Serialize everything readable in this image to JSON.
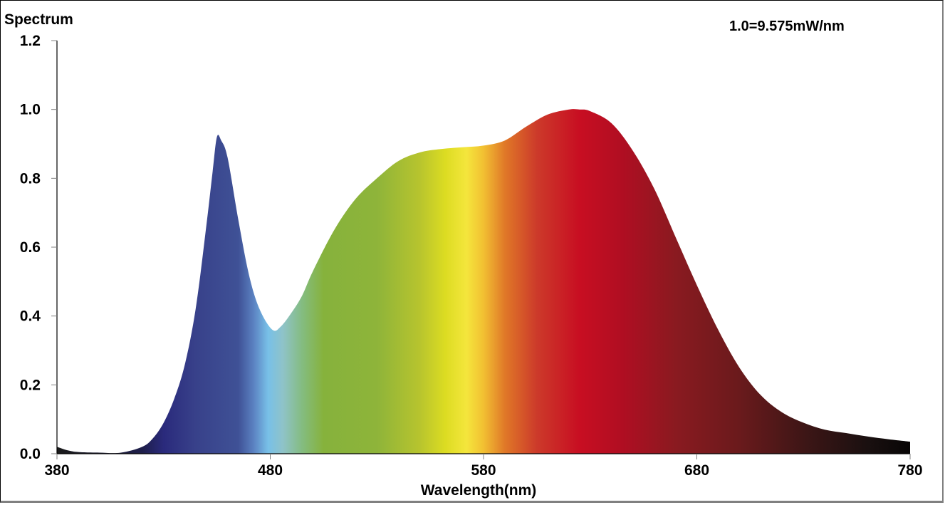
{
  "chart_data": {
    "type": "area",
    "title": "Spectrum",
    "annotation": "1.0=9.575mW/nm",
    "xlabel": "Wavelength(nm)",
    "ylabel": "Spectrum",
    "xlim": [
      380,
      780
    ],
    "ylim": [
      0,
      1.2
    ],
    "x_ticks": [
      "380",
      "480",
      "580",
      "680",
      "780"
    ],
    "y_ticks": [
      "0.0",
      "0.2",
      "0.4",
      "0.6",
      "0.8",
      "1.0",
      "1.2"
    ],
    "grid": false,
    "legend": null,
    "fill": "visible-spectrum color gradient",
    "x": [
      380,
      385,
      390,
      400,
      410,
      420,
      425,
      430,
      435,
      440,
      445,
      450,
      453,
      455,
      457,
      460,
      465,
      470,
      475,
      481,
      485,
      490,
      495,
      500,
      510,
      520,
      530,
      540,
      550,
      560,
      570,
      580,
      590,
      600,
      610,
      620,
      625,
      630,
      640,
      650,
      660,
      670,
      680,
      690,
      700,
      710,
      720,
      730,
      740,
      750,
      760,
      770,
      780
    ],
    "values": [
      0.02,
      0.01,
      0.005,
      0.003,
      0.003,
      0.02,
      0.045,
      0.09,
      0.16,
      0.26,
      0.42,
      0.66,
      0.82,
      0.92,
      0.91,
      0.86,
      0.68,
      0.52,
      0.42,
      0.36,
      0.37,
      0.41,
      0.46,
      0.53,
      0.65,
      0.74,
      0.8,
      0.85,
      0.875,
      0.885,
      0.89,
      0.895,
      0.91,
      0.95,
      0.985,
      1.0,
      1.0,
      0.995,
      0.96,
      0.88,
      0.77,
      0.63,
      0.49,
      0.36,
      0.25,
      0.17,
      0.12,
      0.09,
      0.07,
      0.06,
      0.05,
      0.042,
      0.035
    ]
  },
  "gradient_stops": [
    {
      "nm": 380,
      "color": "#1a1a1a"
    },
    {
      "nm": 420,
      "color": "#1e1e4a"
    },
    {
      "nm": 430,
      "color": "#2a2a7c"
    },
    {
      "nm": 445,
      "color": "#38418a"
    },
    {
      "nm": 465,
      "color": "#3f5196"
    },
    {
      "nm": 472,
      "color": "#5a80c0"
    },
    {
      "nm": 479,
      "color": "#78c0e8"
    },
    {
      "nm": 486,
      "color": "#8fc3c8"
    },
    {
      "nm": 495,
      "color": "#84bc80"
    },
    {
      "nm": 505,
      "color": "#86b23c"
    },
    {
      "nm": 530,
      "color": "#8eb43a"
    },
    {
      "nm": 550,
      "color": "#b7c42e"
    },
    {
      "nm": 562,
      "color": "#dcdc22"
    },
    {
      "nm": 572,
      "color": "#f4e63c"
    },
    {
      "nm": 580,
      "color": "#f2c032"
    },
    {
      "nm": 590,
      "color": "#e07828"
    },
    {
      "nm": 605,
      "color": "#cc3a2a"
    },
    {
      "nm": 625,
      "color": "#c80e22"
    },
    {
      "nm": 645,
      "color": "#b00e22"
    },
    {
      "nm": 670,
      "color": "#8a1a20"
    },
    {
      "nm": 700,
      "color": "#6a1a1c"
    },
    {
      "nm": 730,
      "color": "#3e1616"
    },
    {
      "nm": 760,
      "color": "#1a1010"
    },
    {
      "nm": 780,
      "color": "#080606"
    }
  ]
}
